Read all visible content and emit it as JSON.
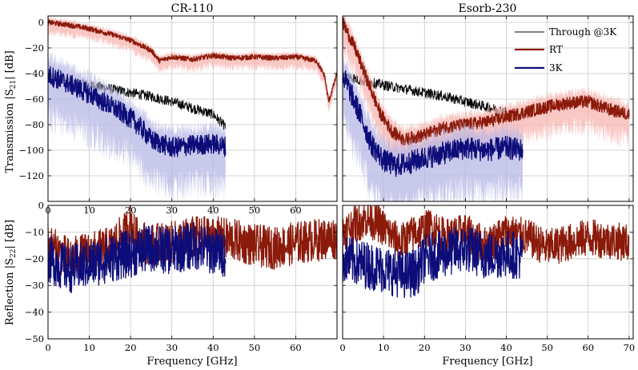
{
  "chart_data": [
    {
      "type": "line",
      "panel": "top-left",
      "title": "CR-110",
      "xlabel": "",
      "ylabel": "Transmission |S21| [dB]",
      "ylabel_main": "Transmission |S",
      "ylabel_sub": "21",
      "ylabel_end": "| [dB]",
      "xlim": [
        0,
        70
      ],
      "ylim": [
        -140,
        5
      ],
      "xticks": [
        "0",
        "10",
        "20",
        "30",
        "40",
        "50",
        "60"
      ],
      "yticks": [
        "0",
        "−20",
        "−40",
        "−60",
        "−80",
        "−100",
        "−120"
      ],
      "grid": true,
      "series": [
        {
          "name": "Through @3K",
          "color": "#000000",
          "x": [
            0,
            5,
            10,
            15,
            20,
            25,
            30,
            35,
            40,
            43
          ],
          "y": [
            -41,
            -46,
            -49,
            -52,
            -55,
            -58,
            -62,
            -67,
            -72,
            -82
          ],
          "noise": 4
        },
        {
          "name": "RT",
          "color": "#8b1a0a",
          "band": "#f7b4b0",
          "x": [
            0,
            5,
            10,
            15,
            20,
            25,
            27,
            30,
            35,
            40,
            45,
            50,
            55,
            60,
            65,
            67,
            68,
            70
          ],
          "y": [
            0,
            -2,
            -5,
            -9,
            -14,
            -22,
            -30,
            -27,
            -29,
            -26,
            -28,
            -27,
            -28,
            -27,
            -30,
            -42,
            -62,
            -40
          ],
          "noise": 2
        },
        {
          "name": "3K",
          "color": "#0d0d7a",
          "band": "#b7b7e6",
          "x": [
            0,
            5,
            10,
            15,
            20,
            23,
            25,
            30,
            35,
            40,
            43
          ],
          "y": [
            -41,
            -48,
            -56,
            -65,
            -75,
            -84,
            -92,
            -98,
            -96,
            -95,
            -97
          ],
          "noise": 8
        }
      ]
    },
    {
      "type": "line",
      "panel": "top-right",
      "title": "Esorb-230",
      "xlim": [
        0,
        71
      ],
      "ylim": [
        -140,
        5
      ],
      "xticks": [],
      "yticks": [],
      "grid": true,
      "legend_position": "top-right",
      "series": [
        {
          "name": "Through @3K",
          "color": "#000000",
          "x": [
            0,
            5,
            10,
            15,
            20,
            25,
            30,
            35,
            40
          ],
          "y": [
            -41,
            -46,
            -49,
            -52,
            -55,
            -58,
            -62,
            -66,
            -70
          ],
          "noise": 4
        },
        {
          "name": "RT",
          "color": "#8b1a0a",
          "band": "#f7b4b0",
          "x": [
            0,
            3,
            6,
            9,
            12,
            15,
            20,
            25,
            30,
            35,
            40,
            45,
            50,
            55,
            60,
            65,
            70
          ],
          "y": [
            0,
            -20,
            -45,
            -70,
            -85,
            -92,
            -88,
            -82,
            -80,
            -78,
            -74,
            -70,
            -66,
            -63,
            -62,
            -68,
            -72
          ],
          "noise": 5
        },
        {
          "name": "3K",
          "color": "#0d0d7a",
          "band": "#b7b7e6",
          "x": [
            0,
            4,
            7,
            10,
            13,
            16,
            20,
            25,
            30,
            35,
            40,
            44
          ],
          "y": [
            -41,
            -70,
            -95,
            -108,
            -112,
            -110,
            -106,
            -102,
            -98,
            -100,
            -98,
            -100
          ],
          "noise": 9
        }
      ]
    },
    {
      "type": "line",
      "panel": "bottom-left",
      "title": "",
      "xlabel": "Frequency [GHz]",
      "ylabel": "Reflection |S22| [dB]",
      "ylabel_main": "Reflection |S",
      "ylabel_sub": "22",
      "ylabel_end": "| [dB]",
      "xlim": [
        0,
        70
      ],
      "ylim": [
        -50,
        0
      ],
      "xticks": [
        "0",
        "10",
        "20",
        "30",
        "40",
        "50",
        "60"
      ],
      "yticks": [
        "0",
        "−10",
        "−20",
        "−30",
        "−40",
        "−50"
      ],
      "grid": true,
      "series": [
        {
          "name": "RT",
          "color": "#8b1a0a",
          "x": [
            0,
            5,
            10,
            15,
            19,
            20,
            21,
            25,
            30,
            35,
            40,
            45,
            50,
            55,
            60,
            65,
            70
          ],
          "y": [
            -15,
            -20,
            -18,
            -16,
            -10,
            -5,
            -12,
            -15,
            -14,
            -12,
            -12,
            -13,
            -15,
            -16,
            -14,
            -13,
            -12
          ],
          "noise": 8
        },
        {
          "name": "3K",
          "color": "#0d0d7a",
          "x": [
            0,
            5,
            10,
            15,
            20,
            25,
            30,
            35,
            40,
            43
          ],
          "y": [
            -20,
            -24,
            -22,
            -20,
            -18,
            -16,
            -17,
            -15,
            -17,
            -18
          ],
          "noise": 9
        }
      ]
    },
    {
      "type": "line",
      "panel": "bottom-right",
      "title": "",
      "xlabel": "Frequency [GHz]",
      "xlim": [
        0,
        71
      ],
      "ylim": [
        -50,
        0
      ],
      "xticks": [
        "0",
        "10",
        "20",
        "30",
        "40",
        "50",
        "60",
        "70"
      ],
      "yticks": [],
      "grid": true,
      "series": [
        {
          "name": "RT",
          "color": "#8b1a0a",
          "x": [
            0,
            3,
            6,
            9,
            11,
            14,
            18,
            22,
            25,
            30,
            35,
            40,
            45,
            50,
            55,
            60,
            65,
            70
          ],
          "y": [
            -10,
            -7,
            -5,
            -7,
            -10,
            -14,
            -10,
            -8,
            -12,
            -10,
            -15,
            -10,
            -12,
            -16,
            -14,
            -12,
            -13,
            -14
          ],
          "noise": 7
        },
        {
          "name": "3K",
          "color": "#0d0d7a",
          "x": [
            0,
            5,
            10,
            15,
            18,
            20,
            25,
            30,
            35,
            40,
            44
          ],
          "y": [
            -20,
            -22,
            -24,
            -26,
            -25,
            -20,
            -18,
            -16,
            -19,
            -18,
            -19
          ],
          "noise": 9
        }
      ]
    }
  ],
  "legend": [
    {
      "label": "Through @3K",
      "color": "#000000"
    },
    {
      "label": "RT",
      "color": "#8b1a0a"
    },
    {
      "label": "3K",
      "color": "#0d0d7a"
    }
  ]
}
